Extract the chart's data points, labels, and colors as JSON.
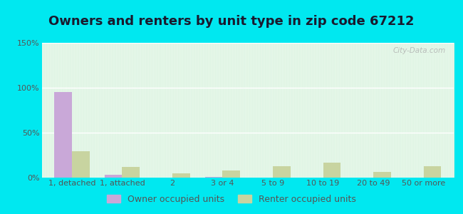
{
  "title": "Owners and renters by unit type in zip code 67212",
  "categories": [
    "1, detached",
    "1, attached",
    "2",
    "3 or 4",
    "5 to 9",
    "10 to 19",
    "20 to 49",
    "50 or more"
  ],
  "owner_values": [
    95,
    3,
    0,
    1,
    0,
    0,
    0,
    0
  ],
  "renter_values": [
    29,
    12,
    5,
    8,
    13,
    17,
    6,
    13
  ],
  "owner_color": "#c9a8d8",
  "renter_color": "#c8d4a0",
  "background_outer": "#00e8f0",
  "ylim": [
    0,
    150
  ],
  "yticks": [
    0,
    50,
    100,
    150
  ],
  "ytick_labels": [
    "0%",
    "50%",
    "100%",
    "150%"
  ],
  "bar_width": 0.35,
  "legend_labels": [
    "Owner occupied units",
    "Renter occupied units"
  ],
  "watermark": "City-Data.com",
  "title_fontsize": 13,
  "tick_fontsize": 8,
  "legend_fontsize": 9
}
